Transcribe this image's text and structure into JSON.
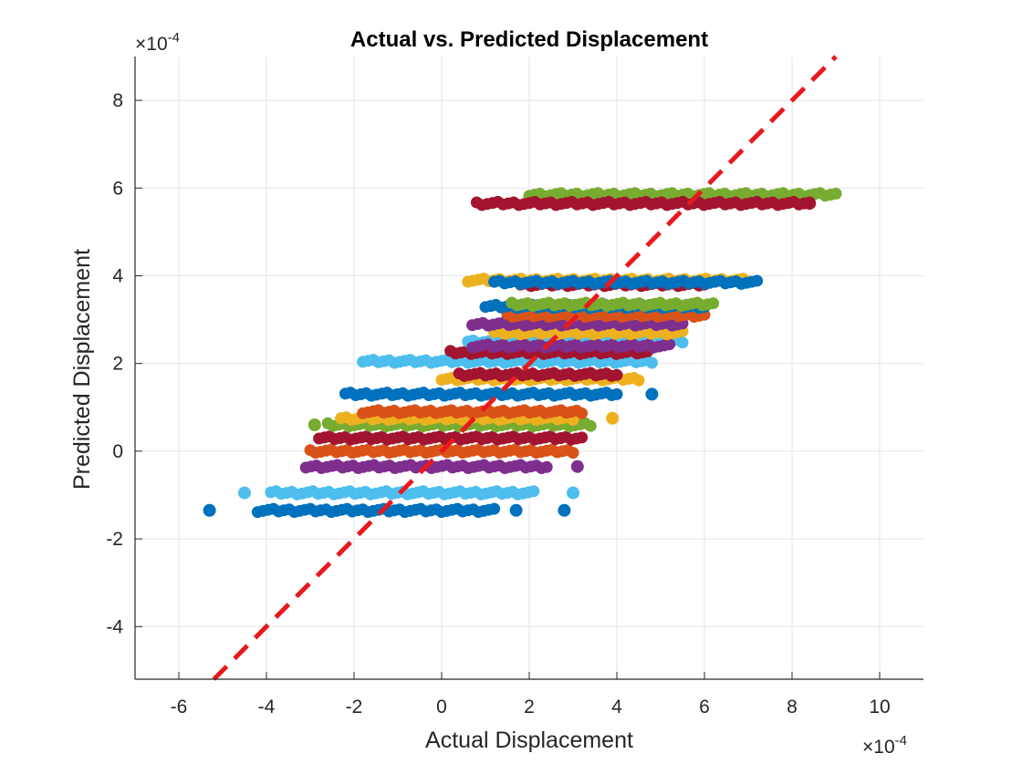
{
  "chart_data": {
    "type": "scatter",
    "title": "Actual vs. Predicted Displacement",
    "xlabel": "Actual Displacement",
    "ylabel": "Predicted Displacement",
    "x_exponent_label": "×10",
    "x_exponent_power": "-4",
    "y_exponent_label": "×10",
    "y_exponent_power": "-4",
    "scale": 0.0001,
    "xlim": [
      -7,
      11
    ],
    "ylim": [
      -5.2,
      9.0
    ],
    "xticks": [
      -6,
      -4,
      -2,
      0,
      2,
      4,
      6,
      8,
      10
    ],
    "xtick_labels": [
      "-6",
      "-4",
      "-2",
      "0",
      "2",
      "4",
      "6",
      "8",
      "10"
    ],
    "yticks": [
      -4,
      -2,
      0,
      2,
      4,
      6,
      8
    ],
    "ytick_labels": [
      "-4",
      "-2",
      "0",
      "2",
      "4",
      "6",
      "8"
    ],
    "grid": true,
    "reference_line": {
      "style": "dashed",
      "color": "#e8191e",
      "description": "y = x"
    },
    "colors": {
      "blue": "#0072bd",
      "orange": "#d95319",
      "yellow": "#edb120",
      "purple": "#7e2f8e",
      "green": "#77ac30",
      "cyan": "#4dbeee",
      "maroon": "#a2142f"
    },
    "series": [
      {
        "color": "blue",
        "y": -1.35,
        "x_range": [
          -4.2,
          1.2
        ],
        "outliers_x": [
          -5.3,
          1.7,
          2.8
        ]
      },
      {
        "color": "cyan",
        "y": -0.95,
        "x_range": [
          -3.9,
          2.1
        ],
        "outliers_x": [
          -4.5,
          3.0
        ]
      },
      {
        "color": "purple",
        "y": -0.35,
        "x_range": [
          -3.1,
          2.4
        ],
        "outliers_x": [
          3.1
        ]
      },
      {
        "color": "orange",
        "y": 0.0,
        "x_range": [
          -3.0,
          3.0
        ]
      },
      {
        "color": "maroon",
        "y": 0.3,
        "x_range": [
          -2.8,
          3.2
        ]
      },
      {
        "color": "green",
        "y": 0.6,
        "x_range": [
          -2.6,
          3.4
        ],
        "outliers_x": [
          -2.9
        ]
      },
      {
        "color": "yellow",
        "y": 0.75,
        "x_range": [
          -2.3,
          3.0
        ],
        "outliers_x": [
          3.9
        ]
      },
      {
        "color": "orange",
        "y": 0.9,
        "x_range": [
          -1.8,
          3.2
        ]
      },
      {
        "color": "blue",
        "y": 1.3,
        "x_range": [
          -2.2,
          4.0
        ],
        "outliers_x": [
          4.8
        ]
      },
      {
        "color": "yellow",
        "y": 1.65,
        "x_range": [
          0.0,
          4.5
        ]
      },
      {
        "color": "maroon",
        "y": 1.75,
        "x_range": [
          0.4,
          4.0
        ]
      },
      {
        "color": "cyan",
        "y": 2.05,
        "x_range": [
          -1.8,
          4.8
        ]
      },
      {
        "color": "maroon",
        "y": 2.25,
        "x_range": [
          0.2,
          4.7
        ]
      },
      {
        "color": "cyan",
        "y": 2.5,
        "x_range": [
          0.6,
          5.5
        ]
      },
      {
        "color": "purple",
        "y": 2.4,
        "x_range": [
          0.7,
          5.2
        ]
      },
      {
        "color": "yellow",
        "y": 2.7,
        "x_range": [
          1.2,
          5.5
        ]
      },
      {
        "color": "purple",
        "y": 2.9,
        "x_range": [
          0.7,
          5.5
        ]
      },
      {
        "color": "orange",
        "y": 3.1,
        "x_range": [
          1.5,
          6.0
        ]
      },
      {
        "color": "blue",
        "y": 3.3,
        "x_range": [
          1.0,
          6.0
        ]
      },
      {
        "color": "green",
        "y": 3.35,
        "x_range": [
          1.6,
          6.2
        ]
      },
      {
        "color": "maroon",
        "y": 3.8,
        "x_range": [
          1.8,
          6.0
        ]
      },
      {
        "color": "yellow",
        "y": 3.9,
        "x_range": [
          0.6,
          7.0
        ]
      },
      {
        "color": "blue",
        "y": 3.85,
        "x_range": [
          1.2,
          7.2
        ]
      },
      {
        "color": "green",
        "y": 5.85,
        "x_range": [
          2.0,
          9.0
        ]
      },
      {
        "color": "maroon",
        "y": 5.65,
        "x_range": [
          0.8,
          8.4
        ],
        "outliers_x": [
          8.4
        ]
      }
    ]
  }
}
